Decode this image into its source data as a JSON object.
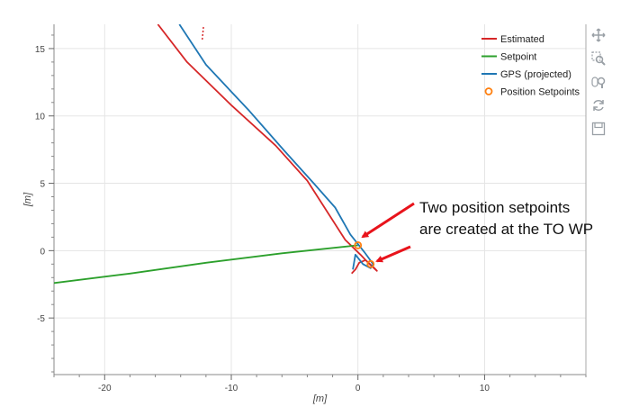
{
  "chart_data": {
    "type": "line",
    "title": "",
    "xlabel": "[m]",
    "ylabel": "[m]",
    "xlim": [
      -24,
      18
    ],
    "ylim": [
      -9.2,
      16.8
    ],
    "xticks": [
      -20,
      -10,
      0,
      10
    ],
    "xtick_labels": [
      "-20",
      "-10",
      "0",
      "10"
    ],
    "yticks": [
      -5,
      0,
      5,
      10,
      15
    ],
    "ytick_labels": [
      "-5",
      "0",
      "5",
      "10",
      "15"
    ],
    "grid": true,
    "legend_position": "top-right",
    "series": [
      {
        "name": "Estimated",
        "color": "#d62728",
        "x": [
          -15.8,
          -13.5,
          -10.0,
          -6.5,
          -4.0,
          -2.5,
          -1.0,
          0.2,
          0.8,
          1.5,
          1.3,
          0.6,
          0.1,
          -0.2,
          -0.5
        ],
        "y": [
          16.8,
          14.0,
          10.8,
          7.8,
          5.2,
          3.0,
          0.8,
          -0.3,
          -0.9,
          -1.5,
          -1.3,
          -0.7,
          -0.9,
          -1.4,
          -1.7
        ]
      },
      {
        "name": "Setpoint",
        "color": "#2ca02c",
        "x": [
          -24.0,
          -18.0,
          -12.0,
          -6.0,
          0.0
        ],
        "y": [
          -2.4,
          -1.7,
          -0.9,
          -0.2,
          0.4
        ]
      },
      {
        "name": "GPS (projected)",
        "color": "#1f77b4",
        "x": [
          -14.1,
          -12.0,
          -8.6,
          -5.8,
          -3.5,
          -1.8,
          -0.6,
          0.5,
          1.2,
          1.0,
          0.4,
          -0.2,
          -0.4
        ],
        "y": [
          16.8,
          13.8,
          10.4,
          7.4,
          5.0,
          3.2,
          1.2,
          -0.1,
          -1.0,
          -1.3,
          -1.0,
          -0.3,
          -1.4
        ]
      }
    ],
    "points": {
      "name": "Position Setpoints",
      "color": "#ff7f0e",
      "x": [
        0.0,
        1.0
      ],
      "y": [
        0.4,
        -1.0
      ]
    },
    "annotation": {
      "lines": [
        "Two position setpoints",
        "are created at the TO WP"
      ],
      "color": "#e8131b"
    }
  },
  "legend": {
    "items": [
      {
        "label": "Estimated",
        "color": "#d62728",
        "kind": "line"
      },
      {
        "label": "Setpoint",
        "color": "#2ca02c",
        "kind": "line"
      },
      {
        "label": "GPS (projected)",
        "color": "#1f77b4",
        "kind": "line"
      },
      {
        "label": "Position Setpoints",
        "color": "#ff7f0e",
        "kind": "circle"
      }
    ]
  },
  "toolbar": {
    "items": [
      {
        "name": "pan-tool-icon",
        "active": true
      },
      {
        "name": "box-zoom-tool-icon",
        "active": false
      },
      {
        "name": "wheel-zoom-tool-icon",
        "active": true
      },
      {
        "name": "reset-tool-icon",
        "active": false
      },
      {
        "name": "save-tool-icon",
        "active": false
      }
    ]
  }
}
